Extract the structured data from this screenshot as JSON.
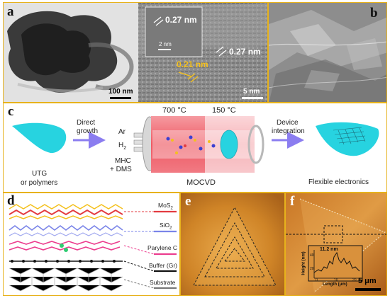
{
  "panels": {
    "a": {
      "label": "a",
      "scale_left": "100 nm",
      "scale_right": "5 nm",
      "inset_scale": "2 nm",
      "lattice_1": "0.27 nm",
      "lattice_2": "0.27 nm",
      "lattice_3": "0.21 nm"
    },
    "b": {
      "label": "b"
    },
    "c": {
      "label": "c",
      "substrate_label_line1": "UTG",
      "substrate_label_line2": "or polymers",
      "step1_line1": "Direct",
      "step1_line2": "growth",
      "gas_ar": "Ar",
      "gas_h2": "H",
      "gas_h2_sub": "2",
      "gas_mhc_line1": "MHC",
      "gas_mhc_line2": "+ DMS",
      "temp_hot": "700 °C",
      "temp_cold": "150 °C",
      "furnace_label": "MOCVD",
      "step2_line1": "Device",
      "step2_line2": "integration",
      "result_label": "Flexible electronics"
    },
    "d": {
      "label": "d",
      "layers": [
        {
          "name": "MoS",
          "sub": "2"
        },
        {
          "name": "SiO",
          "sub": "2"
        },
        {
          "name": "Parylene C",
          "sub": ""
        },
        {
          "name": "Buffer (Gr)",
          "sub": ""
        },
        {
          "name": "Substrate",
          "sub": ""
        }
      ]
    },
    "e": {
      "label": "e"
    },
    "f": {
      "label": "f",
      "inset_value": "11.2 nm",
      "inset_ylabel": "Height (nm)",
      "inset_xlabel": "Length (μm)",
      "inset_yticks": [
        "40",
        "20"
      ],
      "inset_xticks": [
        "0",
        "10",
        "20"
      ],
      "scale": "5 μm"
    }
  },
  "colors": {
    "border": "#e7b21c",
    "substrate": "#27d3e0",
    "furnace_hot": "#ef5a64",
    "furnace_cold": "#f6b4b9",
    "arrow": "#8b7df0",
    "lattice_yellow": "#f4c01d",
    "mos2_layer": "#e33b40",
    "sio2_layer": "#7a84e8",
    "parylene_layer": "#ec3d8e"
  }
}
